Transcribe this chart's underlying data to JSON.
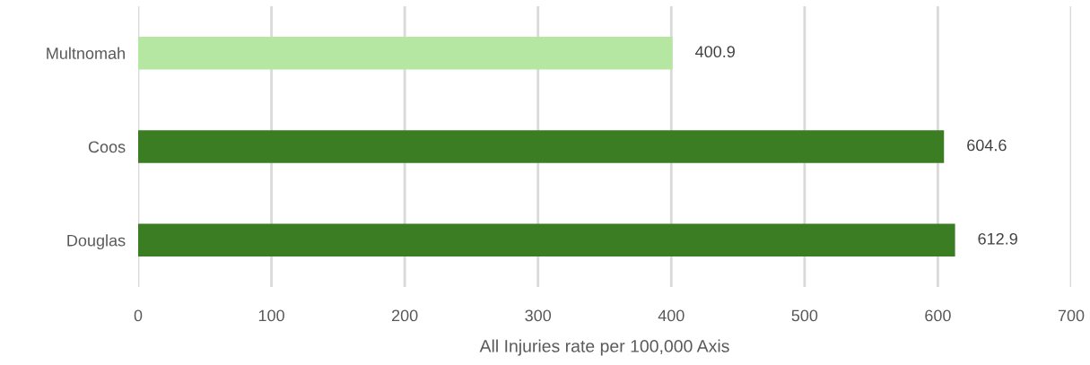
{
  "chart_data": {
    "type": "bar",
    "orientation": "horizontal",
    "categories": [
      "Multnomah",
      "Coos",
      "Douglas"
    ],
    "values": [
      400.9,
      604.6,
      612.9
    ],
    "colors": [
      "#b5e6a2",
      "#3b7d23",
      "#3b7d23"
    ],
    "xlabel": "All Injuries rate per 100,000 Axis",
    "xlim": [
      0,
      700
    ],
    "xticks": [
      0,
      100,
      200,
      300,
      400,
      500,
      600,
      700
    ],
    "grid": "x",
    "data_labels": true,
    "legend": false
  }
}
